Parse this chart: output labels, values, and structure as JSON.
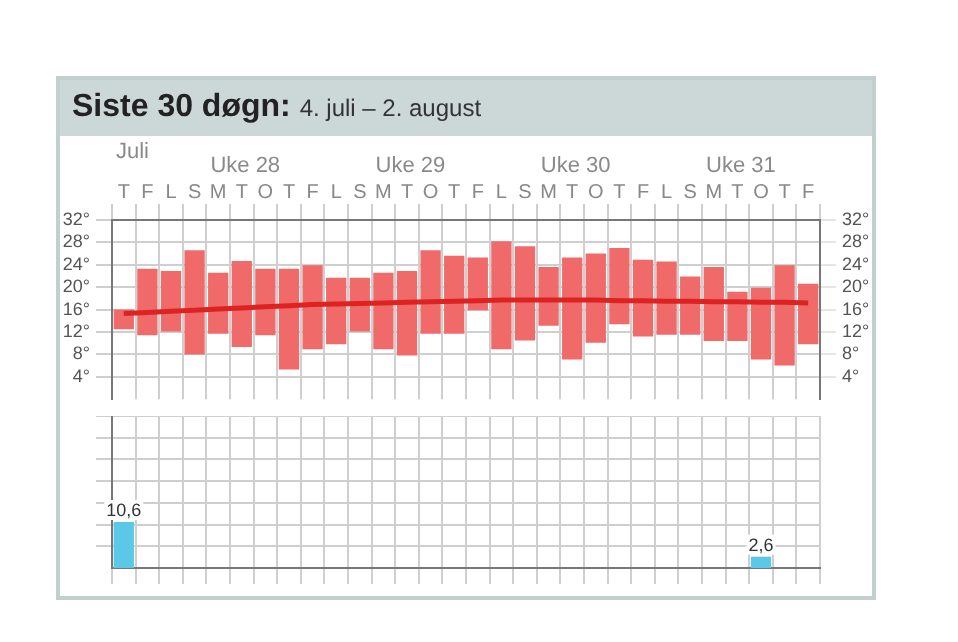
{
  "chart_data": [
    {
      "type": "bar",
      "title": "Siste 30 døgn:",
      "subtitle": "4. juli – 2. august",
      "categories": [
        "T",
        "F",
        "L",
        "S",
        "M",
        "T",
        "O",
        "T",
        "F",
        "L",
        "S",
        "M",
        "T",
        "O",
        "T",
        "F",
        "L",
        "S",
        "M",
        "T",
        "O",
        "T",
        "F",
        "L",
        "S",
        "M",
        "T",
        "O",
        "T",
        "F"
      ],
      "series": [
        {
          "type": "bar",
          "color": "#f06a6a",
          "values": [
            3.5,
            11.9,
            10.8,
            18.6,
            10.9,
            15.4,
            11.9,
            18.0,
            15.0,
            11.9,
            9.6,
            13.7,
            15.1,
            14.9,
            13.9,
            9.4,
            19.3,
            16.8,
            10.5,
            18.2,
            15.9,
            13.6,
            13.7,
            13.1,
            10.4,
            13.2,
            8.8,
            12.8,
            17.9,
            10.8
          ],
          "base": [
            12.5,
            11.4,
            12.1,
            8.0,
            11.7,
            9.3,
            11.4,
            5.3,
            8.9,
            9.8,
            12.1,
            8.9,
            7.8,
            11.7,
            11.7,
            15.9,
            8.9,
            10.5,
            13.1,
            7.1,
            10.1,
            13.4,
            11.2,
            11.5,
            11.5,
            10.4,
            10.4,
            7.1,
            6.0,
            9.8
          ]
        },
        {
          "type": "line",
          "color": "#dd2222",
          "values": [
            15.3,
            15.5,
            15.7,
            15.9,
            16.1,
            16.3,
            16.5,
            16.7,
            16.9,
            17.0,
            17.1,
            17.2,
            17.3,
            17.4,
            17.5,
            17.6,
            17.7,
            17.7,
            17.7,
            17.7,
            17.7,
            17.6,
            17.6,
            17.5,
            17.5,
            17.4,
            17.4,
            17.3,
            17.3,
            17.2
          ]
        }
      ],
      "ylim": [
        0,
        32
      ],
      "yticks": [
        {
          "value": 4,
          "label": "4°"
        },
        {
          "value": 8,
          "label": "8°"
        },
        {
          "value": 12,
          "label": "12°"
        },
        {
          "value": 16,
          "label": "16°"
        },
        {
          "value": 20,
          "label": "20°"
        },
        {
          "value": 24,
          "label": "24°"
        },
        {
          "value": 28,
          "label": "28°"
        },
        {
          "value": 32,
          "label": "32°"
        }
      ],
      "y2lim": [
        0,
        32
      ],
      "y2ticks": [
        {
          "value": 4,
          "label": "4°"
        },
        {
          "value": 8,
          "label": "8°"
        },
        {
          "value": 12,
          "label": "12°"
        },
        {
          "value": 16,
          "label": "16°"
        },
        {
          "value": 20,
          "label": "20°"
        },
        {
          "value": 24,
          "label": "24°"
        },
        {
          "value": 28,
          "label": "28°"
        },
        {
          "value": 32,
          "label": "32°"
        }
      ],
      "annotations": [
        "Juli",
        "Uke 28",
        "Uke 29",
        "Uke 30",
        "Uke 31"
      ],
      "grid": true,
      "marker": "none",
      "legend": false
    },
    {
      "type": "bar",
      "categories": [
        null,
        null,
        null,
        null,
        null,
        null,
        null,
        null,
        null,
        null,
        null,
        null,
        null,
        null,
        null,
        null,
        null,
        null,
        null,
        null,
        null,
        null,
        null,
        null,
        null,
        null,
        null,
        null,
        null,
        null
      ],
      "values": [
        10.6,
        null,
        null,
        null,
        null,
        null,
        null,
        null,
        null,
        null,
        null,
        null,
        null,
        null,
        null,
        null,
        null,
        null,
        null,
        null,
        null,
        null,
        null,
        null,
        null,
        null,
        null,
        2.6,
        null,
        null
      ],
      "value_labels": [
        "10,6",
        null,
        null,
        null,
        null,
        null,
        null,
        null,
        null,
        null,
        null,
        null,
        null,
        null,
        null,
        null,
        null,
        null,
        null,
        null,
        null,
        null,
        null,
        null,
        null,
        null,
        null,
        "2,6",
        null,
        null
      ],
      "color": "#5bc8e8",
      "ylim": [
        0,
        35
      ],
      "yticks": [
        {
          "value": 5,
          "label": null
        },
        {
          "value": 10,
          "label": null
        },
        {
          "value": 15,
          "label": null
        },
        {
          "value": 20,
          "label": null
        },
        {
          "value": 25,
          "label": null
        },
        {
          "value": 30,
          "label": null
        },
        {
          "value": 35,
          "label": null
        }
      ],
      "grid": true,
      "tick_labels": false,
      "legend": false
    }
  ]
}
